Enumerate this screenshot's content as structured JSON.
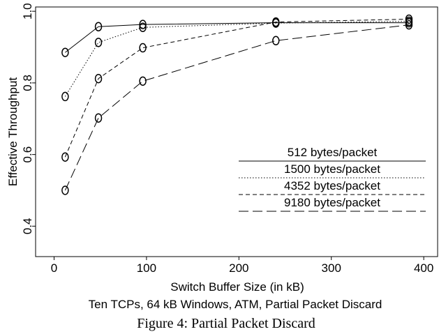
{
  "chart_data": {
    "type": "line",
    "xlabel": "Switch Buffer Size (in kB)",
    "ylabel": "Effective Throughput",
    "subtitle": "Ten TCPs, 64 kB Windows, ATM, Partial Packet Discard",
    "caption": "Figure 4: Partial Packet Discard",
    "xlim": [
      -20,
      415
    ],
    "ylim": [
      0.315,
      1.012
    ],
    "x_ticks": [
      "0",
      "100",
      "200",
      "300",
      "400"
    ],
    "y_ticks": [
      "0.4",
      "0.6",
      "0.8",
      "1.0"
    ],
    "x": [
      12,
      48,
      96,
      240,
      384
    ],
    "marker": "o",
    "grid": false,
    "legend_position": "lower-right",
    "series": [
      {
        "name": "512 bytes/packet",
        "dash": "solid",
        "values": [
          0.885,
          0.957,
          0.963,
          0.968,
          0.968
        ]
      },
      {
        "name": "1500 bytes/packet",
        "dash": "dotted",
        "values": [
          0.762,
          0.913,
          0.955,
          0.967,
          0.972
        ]
      },
      {
        "name": "4352 bytes/packet",
        "dash": "short-dash",
        "values": [
          0.593,
          0.812,
          0.898,
          0.97,
          0.978
        ]
      },
      {
        "name": "9180 bytes/packet",
        "dash": "long-dash",
        "values": [
          0.5,
          0.702,
          0.805,
          0.918,
          0.962
        ]
      }
    ]
  }
}
